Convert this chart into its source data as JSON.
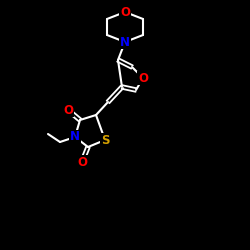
{
  "bg_color": "#000000",
  "bond_color": "#ffffff",
  "atom_colors": {
    "O": "#ff0000",
    "N": "#0000ff",
    "S": "#d4a000"
  },
  "font_size": 8.5,
  "figsize": [
    2.5,
    2.5
  ],
  "dpi": 100
}
